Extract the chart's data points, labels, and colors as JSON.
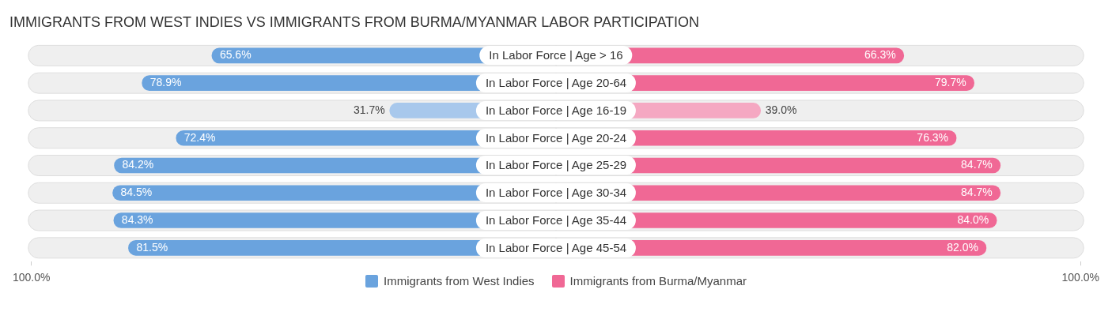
{
  "chart_data": [
    {
      "type": "bar",
      "orientation": "horizontal",
      "title": "IMMIGRANTS FROM WEST INDIES VS IMMIGRANTS FROM BURMA/MYANMAR LABOR PARTICIPATION",
      "categories": [
        "In Labor Force | Age > 16",
        "In Labor Force | Age 20-64",
        "In Labor Force | Age 16-19",
        "In Labor Force | Age 20-24",
        "In Labor Force | Age 25-29",
        "In Labor Force | Age 30-34",
        "In Labor Force | Age 35-44",
        "In Labor Force | Age 45-54"
      ],
      "series": [
        {
          "name": "Immigrants from West Indies",
          "color": "#6aa3de",
          "colors": [
            "#6aa3de",
            "#6aa3de",
            "#a8c8ec",
            "#6aa3de",
            "#6aa3de",
            "#6aa3de",
            "#6aa3de",
            "#6aa3de"
          ],
          "values": [
            65.6,
            78.9,
            31.7,
            72.4,
            84.2,
            84.5,
            84.3,
            81.5
          ],
          "value_labels": [
            "65.6%",
            "78.9%",
            "31.7%",
            "72.4%",
            "84.2%",
            "84.5%",
            "84.3%",
            "81.5%"
          ]
        }
      ],
      "xlim": [
        100,
        0
      ],
      "xticks": [
        {
          "value": 100,
          "label": "100.0%"
        }
      ],
      "grid": false,
      "legend": "bottom"
    },
    {
      "type": "bar",
      "orientation": "horizontal",
      "categories": [
        null,
        null,
        null,
        null,
        null,
        null,
        null,
        null
      ],
      "series": [
        {
          "name": "Immigrants from Burma/Myanmar",
          "color": "#f06895",
          "colors": [
            "#f06895",
            "#f06895",
            "#f5a8c2",
            "#f06895",
            "#f06895",
            "#f06895",
            "#f06895",
            "#f06895"
          ],
          "values": [
            66.3,
            79.7,
            39.0,
            76.3,
            84.7,
            84.7,
            84.0,
            82.0
          ],
          "value_labels": [
            "66.3%",
            "79.7%",
            "39.0%",
            "76.3%",
            "84.7%",
            "84.7%",
            "84.0%",
            "82.0%"
          ]
        }
      ],
      "xlim": [
        0,
        100
      ],
      "xticks": [
        {
          "value": 100,
          "label": "100.0%"
        }
      ],
      "grid": false,
      "legend": "bottom"
    }
  ]
}
